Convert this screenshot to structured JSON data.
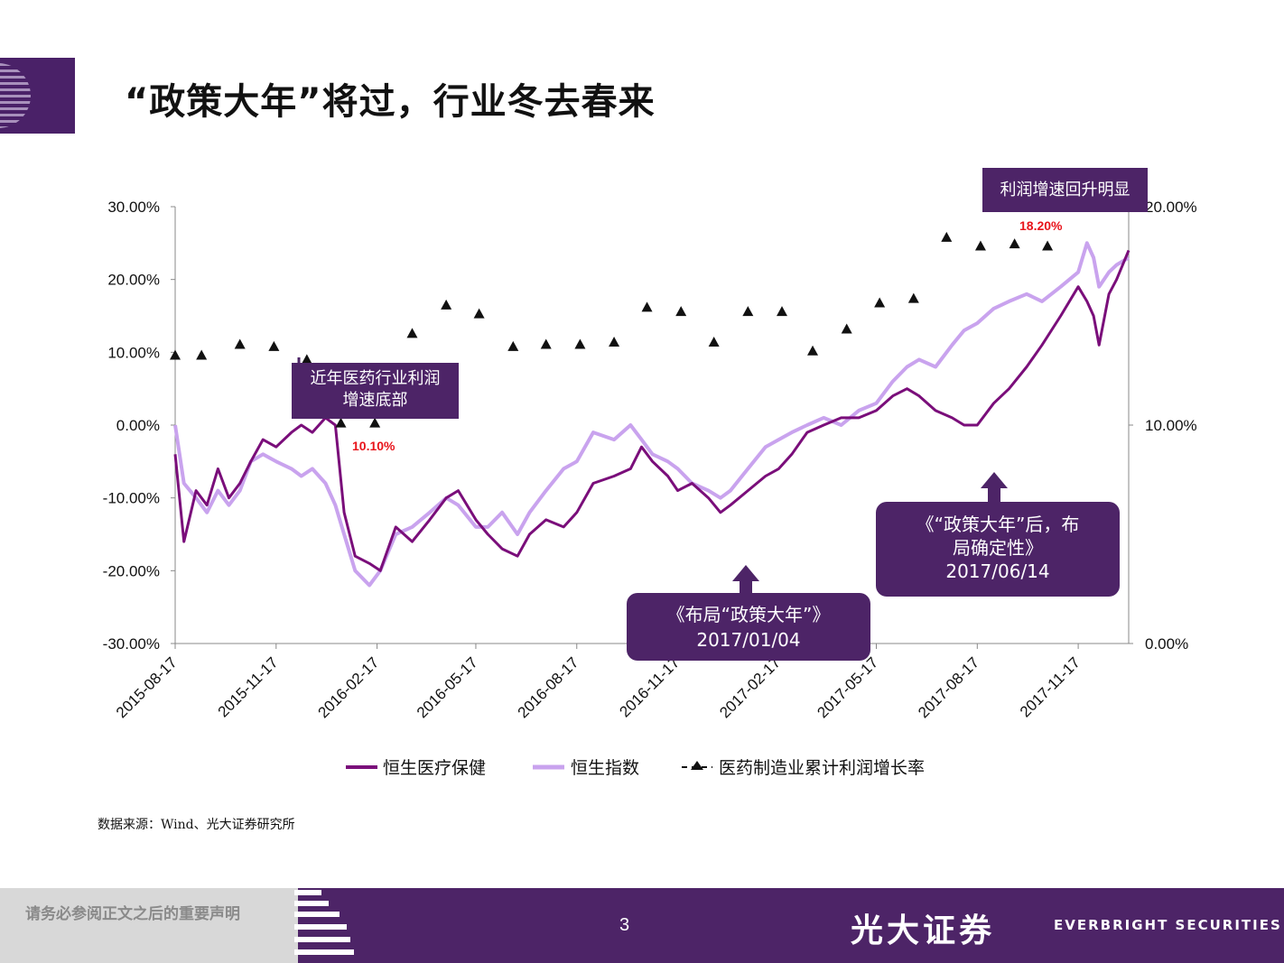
{
  "page": {
    "title": "“政策大年”将过，行业冬去春来",
    "source": "数据来源：Wind、光大证券研究所",
    "page_number": "3"
  },
  "callouts": {
    "bottom_profit": [
      "近年医药行业利润",
      "增速底部"
    ],
    "profit_rebound": "利润增速回升明显",
    "report_2017_01": [
      "《布局“政策大年”》",
      "2017/01/04"
    ],
    "report_2017_06": [
      "《“政策大年”后，布",
      "局确定性》",
      "2017/06/14"
    ],
    "low_value": "10.10%",
    "high_value": "18.20%"
  },
  "footer": {
    "disclaimer": "请务必参阅正文之后的重要声明",
    "brand_cn": "光大证券",
    "brand_en": "EVERBRIGHT SECURITIES"
  },
  "colors": {
    "brand_purple": "#4d2467",
    "series_hs_health": "#7a0e7a",
    "series_hsi": "#c9a3ee",
    "markers": "#111111",
    "highlight_red": "#e8141b"
  },
  "chart_data": {
    "type": "line",
    "x_range": [
      "2015-08-17",
      "2018-01-02"
    ],
    "x_ticks": [
      "2015-08-17",
      "2015-11-17",
      "2016-02-17",
      "2016-05-17",
      "2016-08-17",
      "2016-11-17",
      "2017-02-17",
      "2017-05-17",
      "2017-08-17",
      "2017-11-17"
    ],
    "y_left": {
      "min": -30,
      "max": 30,
      "ticks": [
        "30.00%",
        "20.00%",
        "10.00%",
        "0.00%",
        "-10.00%",
        "-20.00%",
        "-30.00%"
      ]
    },
    "y_right": {
      "min": 0,
      "max": 20,
      "ticks": [
        "20.00%",
        "10.00%",
        "0.00%"
      ]
    },
    "series": [
      {
        "name": "恒生医疗保健",
        "axis": "left",
        "kind": "line",
        "points": [
          [
            "2015-08-17",
            -4
          ],
          [
            "2015-08-25",
            -16
          ],
          [
            "2015-09-05",
            -9
          ],
          [
            "2015-09-15",
            -11
          ],
          [
            "2015-09-25",
            -6
          ],
          [
            "2015-10-05",
            -10
          ],
          [
            "2015-10-15",
            -8
          ],
          [
            "2015-10-25",
            -5
          ],
          [
            "2015-11-05",
            -2
          ],
          [
            "2015-11-17",
            -3
          ],
          [
            "2015-12-01",
            -1
          ],
          [
            "2015-12-10",
            0
          ],
          [
            "2015-12-20",
            -1
          ],
          [
            "2016-01-01",
            1
          ],
          [
            "2016-01-10",
            0
          ],
          [
            "2016-01-18",
            -12
          ],
          [
            "2016-01-28",
            -18
          ],
          [
            "2016-02-10",
            -19
          ],
          [
            "2016-02-20",
            -20
          ],
          [
            "2016-03-05",
            -14
          ],
          [
            "2016-03-20",
            -16
          ],
          [
            "2016-04-05",
            -13
          ],
          [
            "2016-04-20",
            -10
          ],
          [
            "2016-05-01",
            -9
          ],
          [
            "2016-05-17",
            -13
          ],
          [
            "2016-05-28",
            -15
          ],
          [
            "2016-06-10",
            -17
          ],
          [
            "2016-06-24",
            -18
          ],
          [
            "2016-07-05",
            -15
          ],
          [
            "2016-07-20",
            -13
          ],
          [
            "2016-08-05",
            -14
          ],
          [
            "2016-08-17",
            -12
          ],
          [
            "2016-09-01",
            -8
          ],
          [
            "2016-09-20",
            -7
          ],
          [
            "2016-10-05",
            -6
          ],
          [
            "2016-10-15",
            -3
          ],
          [
            "2016-10-25",
            -5
          ],
          [
            "2016-11-08",
            -7
          ],
          [
            "2016-11-17",
            -9
          ],
          [
            "2016-11-30",
            -8
          ],
          [
            "2016-12-15",
            -10
          ],
          [
            "2016-12-26",
            -12
          ],
          [
            "2017-01-04",
            -11
          ],
          [
            "2017-01-20",
            -9
          ],
          [
            "2017-02-05",
            -7
          ],
          [
            "2017-02-17",
            -6
          ],
          [
            "2017-03-01",
            -4
          ],
          [
            "2017-03-15",
            -1
          ],
          [
            "2017-03-30",
            0
          ],
          [
            "2017-04-15",
            1
          ],
          [
            "2017-05-01",
            1
          ],
          [
            "2017-05-17",
            2
          ],
          [
            "2017-06-01",
            4
          ],
          [
            "2017-06-14",
            5
          ],
          [
            "2017-06-25",
            4
          ],
          [
            "2017-07-10",
            2
          ],
          [
            "2017-07-25",
            1
          ],
          [
            "2017-08-05",
            0
          ],
          [
            "2017-08-17",
            0
          ],
          [
            "2017-09-01",
            3
          ],
          [
            "2017-09-15",
            5
          ],
          [
            "2017-10-01",
            8
          ],
          [
            "2017-10-15",
            11
          ],
          [
            "2017-11-01",
            15
          ],
          [
            "2017-11-17",
            19
          ],
          [
            "2017-11-25",
            17
          ],
          [
            "2017-12-01",
            15
          ],
          [
            "2017-12-06",
            11
          ],
          [
            "2017-12-15",
            18
          ],
          [
            "2017-12-22",
            20
          ],
          [
            "2018-01-02",
            24
          ]
        ]
      },
      {
        "name": "恒生指数",
        "axis": "left",
        "kind": "line",
        "points": [
          [
            "2015-08-17",
            0
          ],
          [
            "2015-08-25",
            -8
          ],
          [
            "2015-09-05",
            -10
          ],
          [
            "2015-09-15",
            -12
          ],
          [
            "2015-09-25",
            -9
          ],
          [
            "2015-10-05",
            -11
          ],
          [
            "2015-10-15",
            -9
          ],
          [
            "2015-10-25",
            -5
          ],
          [
            "2015-11-05",
            -4
          ],
          [
            "2015-11-17",
            -5
          ],
          [
            "2015-12-01",
            -6
          ],
          [
            "2015-12-10",
            -7
          ],
          [
            "2015-12-20",
            -6
          ],
          [
            "2016-01-01",
            -8
          ],
          [
            "2016-01-10",
            -11
          ],
          [
            "2016-01-18",
            -15
          ],
          [
            "2016-01-28",
            -20
          ],
          [
            "2016-02-10",
            -22
          ],
          [
            "2016-02-20",
            -20
          ],
          [
            "2016-03-05",
            -15
          ],
          [
            "2016-03-20",
            -14
          ],
          [
            "2016-04-05",
            -12
          ],
          [
            "2016-04-20",
            -10
          ],
          [
            "2016-05-01",
            -11
          ],
          [
            "2016-05-17",
            -14
          ],
          [
            "2016-05-28",
            -14
          ],
          [
            "2016-06-10",
            -12
          ],
          [
            "2016-06-24",
            -15
          ],
          [
            "2016-07-05",
            -12
          ],
          [
            "2016-07-20",
            -9
          ],
          [
            "2016-08-05",
            -6
          ],
          [
            "2016-08-17",
            -5
          ],
          [
            "2016-09-01",
            -1
          ],
          [
            "2016-09-20",
            -2
          ],
          [
            "2016-10-05",
            0
          ],
          [
            "2016-10-15",
            -2
          ],
          [
            "2016-10-25",
            -4
          ],
          [
            "2016-11-08",
            -5
          ],
          [
            "2016-11-17",
            -6
          ],
          [
            "2016-11-30",
            -8
          ],
          [
            "2016-12-15",
            -9
          ],
          [
            "2016-12-26",
            -10
          ],
          [
            "2017-01-04",
            -9
          ],
          [
            "2017-01-20",
            -6
          ],
          [
            "2017-02-05",
            -3
          ],
          [
            "2017-02-17",
            -2
          ],
          [
            "2017-03-01",
            -1
          ],
          [
            "2017-03-15",
            0
          ],
          [
            "2017-03-30",
            1
          ],
          [
            "2017-04-15",
            0
          ],
          [
            "2017-05-01",
            2
          ],
          [
            "2017-05-17",
            3
          ],
          [
            "2017-06-01",
            6
          ],
          [
            "2017-06-14",
            8
          ],
          [
            "2017-06-25",
            9
          ],
          [
            "2017-07-10",
            8
          ],
          [
            "2017-07-25",
            11
          ],
          [
            "2017-08-05",
            13
          ],
          [
            "2017-08-17",
            14
          ],
          [
            "2017-09-01",
            16
          ],
          [
            "2017-09-15",
            17
          ],
          [
            "2017-10-01",
            18
          ],
          [
            "2017-10-15",
            17
          ],
          [
            "2017-11-01",
            19
          ],
          [
            "2017-11-17",
            21
          ],
          [
            "2017-11-25",
            25
          ],
          [
            "2017-12-01",
            23
          ],
          [
            "2017-12-06",
            19
          ],
          [
            "2017-12-15",
            21
          ],
          [
            "2017-12-22",
            22
          ],
          [
            "2018-01-02",
            23
          ]
        ]
      },
      {
        "name": "医药制造业累计利润增长率",
        "axis": "right",
        "kind": "marker",
        "points": [
          [
            "2015-08-17",
            13.2
          ],
          [
            "2015-09-10",
            13.2
          ],
          [
            "2015-10-15",
            13.7
          ],
          [
            "2015-11-15",
            13.6
          ],
          [
            "2015-12-15",
            13.0
          ],
          [
            "2016-01-15",
            10.1
          ],
          [
            "2016-02-15",
            10.1
          ],
          [
            "2016-03-20",
            14.2
          ],
          [
            "2016-04-20",
            15.5
          ],
          [
            "2016-05-20",
            15.1
          ],
          [
            "2016-06-20",
            13.6
          ],
          [
            "2016-07-20",
            13.7
          ],
          [
            "2016-08-20",
            13.7
          ],
          [
            "2016-09-20",
            13.8
          ],
          [
            "2016-10-20",
            15.4
          ],
          [
            "2016-11-20",
            15.2
          ],
          [
            "2016-12-20",
            13.8
          ],
          [
            "2017-01-20",
            15.2
          ],
          [
            "2017-02-20",
            15.2
          ],
          [
            "2017-03-20",
            13.4
          ],
          [
            "2017-04-20",
            14.4
          ],
          [
            "2017-05-20",
            15.6
          ],
          [
            "2017-06-20",
            15.8
          ],
          [
            "2017-07-20",
            18.6
          ],
          [
            "2017-08-20",
            18.2
          ],
          [
            "2017-09-20",
            18.3
          ],
          [
            "2017-10-20",
            18.2
          ]
        ]
      }
    ],
    "legend": [
      "恒生医疗保健",
      "恒生指数",
      "医药制造业累计利润增长率"
    ],
    "legend_position": "bottom"
  }
}
